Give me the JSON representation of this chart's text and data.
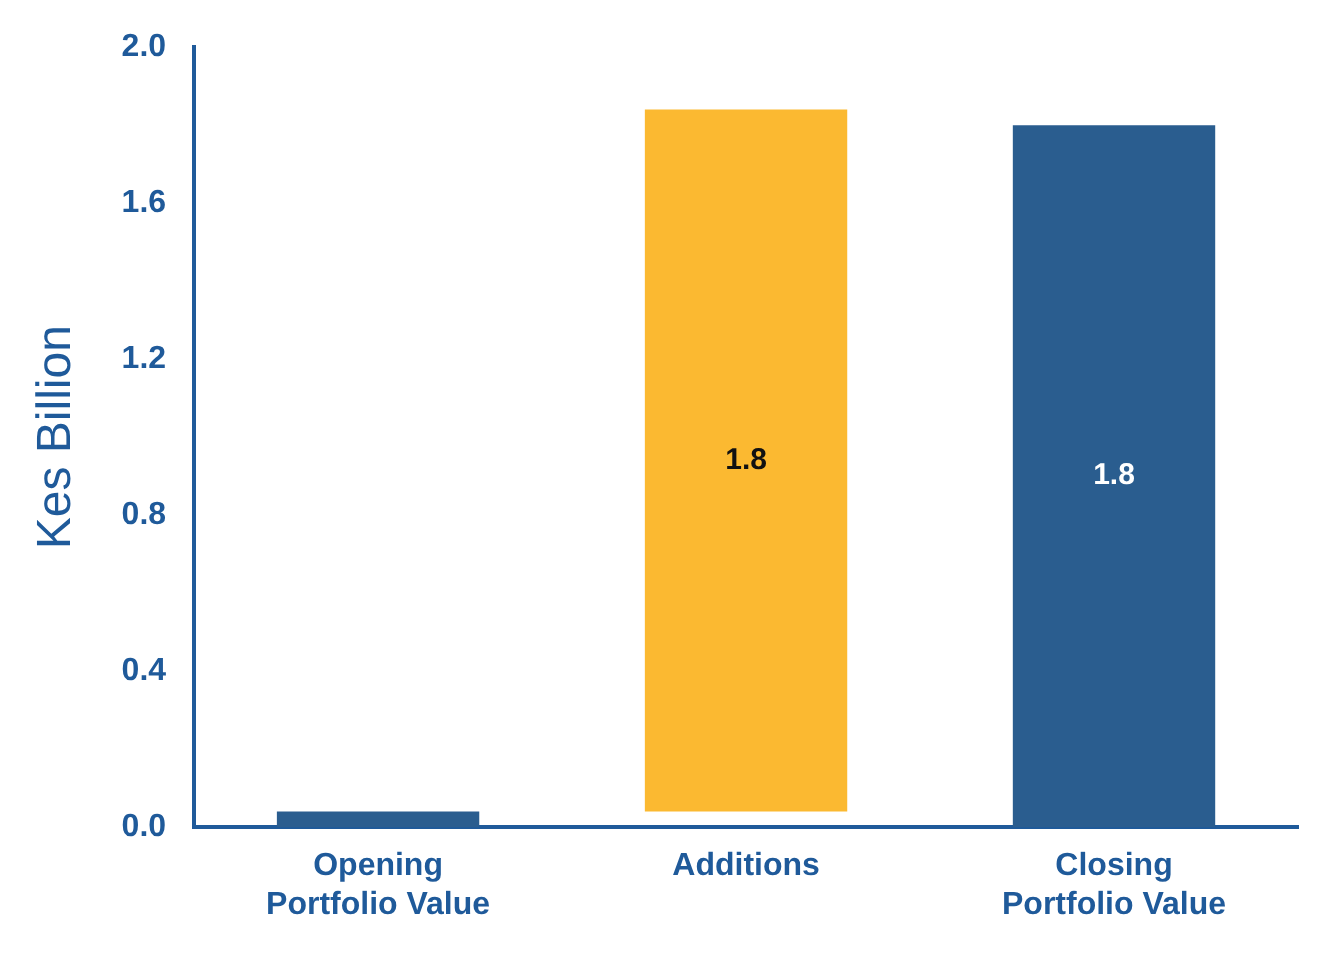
{
  "chart_data": {
    "type": "bar",
    "ylabel": "Kes Billion",
    "categories": [
      "Opening Portfolio Value",
      "Additions",
      "Closing Portfolio Value"
    ],
    "values": [
      0.04,
      1.8,
      1.8
    ],
    "base": [
      0,
      0.04,
      0
    ],
    "colors": [
      "#2a5d8f",
      "#fbb931",
      "#2a5d8f"
    ],
    "value_labels": [
      null,
      "1.8",
      "1.8"
    ],
    "ylim": [
      0,
      2.0
    ],
    "yticks": [
      {
        "value": 0,
        "label": "0.0"
      },
      {
        "value": 0.4,
        "label": "0.4"
      },
      {
        "value": 0.8,
        "label": "0.8"
      },
      {
        "value": 1.2,
        "label": "1.2"
      },
      {
        "value": 1.6,
        "label": "1.6"
      },
      {
        "value": 2.0,
        "label": "2.0"
      }
    ],
    "grid": false,
    "legend": false
  }
}
